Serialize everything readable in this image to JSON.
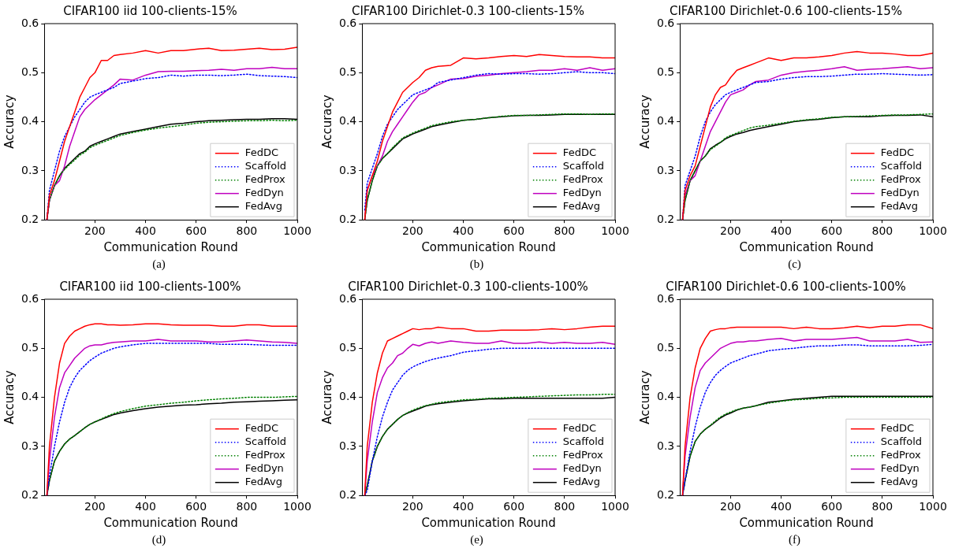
{
  "chart_data": [
    {
      "type": "line",
      "title": "CIFAR100 iid 100-clients-15%",
      "xlabel": "Communication Round",
      "ylabel": "Accuracy",
      "annotations": [
        "(a)"
      ],
      "xlim": [
        0,
        1000
      ],
      "xticks": [
        200,
        400,
        600,
        800,
        1000
      ],
      "ylim": [
        0.2,
        0.6
      ],
      "yticks": [
        0.2,
        0.3,
        0.4,
        0.5,
        0.6
      ],
      "grid": false,
      "legend": "bottom right",
      "marker": "none",
      "x": [
        10,
        20,
        40,
        60,
        80,
        100,
        120,
        140,
        160,
        180,
        200,
        225,
        250,
        275,
        300,
        350,
        400,
        450,
        500,
        550,
        600,
        650,
        700,
        750,
        800,
        850,
        900,
        950,
        1000
      ],
      "series": [
        {
          "name": "FedDC",
          "color": "#ff0000",
          "line_style": "solid",
          "values": [
            0.2,
            0.25,
            0.28,
            0.32,
            0.36,
            0.39,
            0.42,
            0.45,
            0.47,
            0.49,
            0.5,
            0.525,
            0.525,
            0.535,
            0.537,
            0.54,
            0.545,
            0.54,
            0.545,
            0.545,
            0.548,
            0.55,
            0.545,
            0.546,
            0.548,
            0.55,
            0.547,
            0.548,
            0.552
          ]
        },
        {
          "name": "Scaffold",
          "color": "#0000ff",
          "line_style": "dotted",
          "values": [
            0.2,
            0.26,
            0.3,
            0.34,
            0.37,
            0.39,
            0.41,
            0.425,
            0.44,
            0.45,
            0.455,
            0.46,
            0.465,
            0.47,
            0.478,
            0.483,
            0.488,
            0.49,
            0.495,
            0.493,
            0.495,
            0.495,
            0.494,
            0.495,
            0.497,
            0.494,
            0.493,
            0.492,
            0.49
          ]
        },
        {
          "name": "FedProx",
          "color": "#008000",
          "line_style": "dotted",
          "values": [
            0.2,
            0.24,
            0.27,
            0.29,
            0.303,
            0.313,
            0.322,
            0.332,
            0.338,
            0.347,
            0.352,
            0.357,
            0.362,
            0.367,
            0.372,
            0.378,
            0.383,
            0.387,
            0.39,
            0.393,
            0.397,
            0.399,
            0.4,
            0.401,
            0.402,
            0.402,
            0.403,
            0.402,
            0.403
          ]
        },
        {
          "name": "FedDyn",
          "color": "#bf00bf",
          "line_style": "solid",
          "values": [
            0.2,
            0.24,
            0.27,
            0.28,
            0.31,
            0.35,
            0.38,
            0.41,
            0.425,
            0.435,
            0.445,
            0.455,
            0.465,
            0.475,
            0.487,
            0.485,
            0.495,
            0.502,
            0.503,
            0.503,
            0.504,
            0.505,
            0.507,
            0.505,
            0.508,
            0.508,
            0.511,
            0.508,
            0.508
          ]
        },
        {
          "name": "FedAvg",
          "color": "#000000",
          "line_style": "solid",
          "values": [
            0.2,
            0.24,
            0.27,
            0.29,
            0.305,
            0.315,
            0.325,
            0.335,
            0.34,
            0.35,
            0.355,
            0.36,
            0.365,
            0.37,
            0.375,
            0.38,
            0.385,
            0.39,
            0.395,
            0.397,
            0.4,
            0.402,
            0.403,
            0.404,
            0.405,
            0.405,
            0.406,
            0.406,
            0.405
          ]
        }
      ]
    },
    {
      "type": "line",
      "title": "CIFAR100 Dirichlet-0.3 100-clients-15%",
      "xlabel": "Communication Round",
      "ylabel": "Accuracy",
      "annotations": [
        "(b)"
      ],
      "xlim": [
        0,
        1000
      ],
      "xticks": [
        200,
        400,
        600,
        800,
        1000
      ],
      "ylim": [
        0.2,
        0.6
      ],
      "yticks": [
        0.2,
        0.3,
        0.4,
        0.5,
        0.6
      ],
      "grid": false,
      "legend": "bottom right",
      "marker": "none",
      "x": [
        10,
        20,
        40,
        60,
        80,
        100,
        120,
        140,
        160,
        180,
        200,
        225,
        250,
        275,
        300,
        350,
        400,
        450,
        500,
        550,
        600,
        650,
        700,
        750,
        800,
        850,
        900,
        950,
        1000
      ],
      "series": [
        {
          "name": "FedDC",
          "color": "#ff0000",
          "line_style": "solid",
          "values": [
            0.2,
            0.26,
            0.29,
            0.32,
            0.36,
            0.39,
            0.42,
            0.44,
            0.46,
            0.47,
            0.48,
            0.49,
            0.505,
            0.51,
            0.513,
            0.515,
            0.53,
            0.528,
            0.53,
            0.533,
            0.535,
            0.533,
            0.537,
            0.535,
            0.533,
            0.532,
            0.532,
            0.53,
            0.53
          ]
        },
        {
          "name": "Scaffold",
          "color": "#0000ff",
          "line_style": "dotted",
          "values": [
            0.22,
            0.275,
            0.305,
            0.335,
            0.37,
            0.395,
            0.41,
            0.425,
            0.435,
            0.445,
            0.455,
            0.46,
            0.465,
            0.47,
            0.48,
            0.485,
            0.49,
            0.495,
            0.498,
            0.497,
            0.498,
            0.498,
            0.497,
            0.498,
            0.5,
            0.502,
            0.5,
            0.5,
            0.498
          ]
        },
        {
          "name": "FedProx",
          "color": "#008000",
          "line_style": "dotted",
          "values": [
            0.2,
            0.24,
            0.28,
            0.31,
            0.325,
            0.335,
            0.347,
            0.357,
            0.367,
            0.372,
            0.377,
            0.382,
            0.387,
            0.392,
            0.395,
            0.4,
            0.403,
            0.405,
            0.408,
            0.411,
            0.413,
            0.413,
            0.414,
            0.415,
            0.416,
            0.416,
            0.415,
            0.416,
            0.416
          ]
        },
        {
          "name": "FedDyn",
          "color": "#bf00bf",
          "line_style": "solid",
          "values": [
            0.2,
            0.26,
            0.29,
            0.31,
            0.33,
            0.36,
            0.38,
            0.395,
            0.41,
            0.425,
            0.44,
            0.455,
            0.46,
            0.47,
            0.475,
            0.487,
            0.488,
            0.493,
            0.495,
            0.498,
            0.5,
            0.502,
            0.505,
            0.505,
            0.508,
            0.505,
            0.51,
            0.505,
            0.508
          ]
        },
        {
          "name": "FedAvg",
          "color": "#000000",
          "line_style": "solid",
          "values": [
            0.2,
            0.24,
            0.28,
            0.31,
            0.325,
            0.335,
            0.345,
            0.355,
            0.365,
            0.37,
            0.375,
            0.38,
            0.385,
            0.39,
            0.393,
            0.398,
            0.403,
            0.405,
            0.408,
            0.41,
            0.412,
            0.413,
            0.413,
            0.414,
            0.415,
            0.415,
            0.415,
            0.415,
            0.415
          ]
        }
      ]
    },
    {
      "type": "line",
      "title": "CIFAR100 Dirichlet-0.6 100-clients-15%",
      "xlabel": "Communication Round",
      "ylabel": "Accuracy",
      "annotations": [
        "(c)"
      ],
      "xlim": [
        0,
        1000
      ],
      "xticks": [
        200,
        400,
        600,
        800,
        1000
      ],
      "ylim": [
        0.2,
        0.6
      ],
      "yticks": [
        0.2,
        0.3,
        0.4,
        0.5,
        0.6
      ],
      "grid": false,
      "legend": "bottom right",
      "marker": "none",
      "x": [
        10,
        20,
        40,
        60,
        80,
        100,
        120,
        140,
        160,
        180,
        200,
        225,
        250,
        275,
        300,
        350,
        400,
        450,
        500,
        550,
        600,
        650,
        700,
        750,
        800,
        850,
        900,
        950,
        1000
      ],
      "series": [
        {
          "name": "FedDC",
          "color": "#ff0000",
          "line_style": "solid",
          "values": [
            0.2,
            0.26,
            0.29,
            0.31,
            0.35,
            0.39,
            0.43,
            0.455,
            0.47,
            0.475,
            0.49,
            0.505,
            0.51,
            0.515,
            0.52,
            0.53,
            0.525,
            0.53,
            0.53,
            0.532,
            0.535,
            0.54,
            0.543,
            0.54,
            0.54,
            0.538,
            0.535,
            0.535,
            0.54
          ]
        },
        {
          "name": "Scaffold",
          "color": "#0000ff",
          "line_style": "dotted",
          "values": [
            0.2,
            0.27,
            0.3,
            0.33,
            0.37,
            0.4,
            0.42,
            0.435,
            0.445,
            0.455,
            0.46,
            0.465,
            0.47,
            0.475,
            0.48,
            0.482,
            0.487,
            0.49,
            0.492,
            0.492,
            0.493,
            0.495,
            0.497,
            0.497,
            0.498,
            0.497,
            0.496,
            0.495,
            0.496
          ]
        },
        {
          "name": "FedProx",
          "color": "#008000",
          "line_style": "dotted",
          "values": [
            0.2,
            0.24,
            0.28,
            0.3,
            0.32,
            0.33,
            0.343,
            0.35,
            0.358,
            0.367,
            0.372,
            0.377,
            0.382,
            0.387,
            0.39,
            0.393,
            0.397,
            0.401,
            0.404,
            0.406,
            0.409,
            0.41,
            0.411,
            0.412,
            0.413,
            0.414,
            0.414,
            0.415,
            0.416
          ]
        },
        {
          "name": "FedDyn",
          "color": "#bf00bf",
          "line_style": "solid",
          "values": [
            0.2,
            0.25,
            0.28,
            0.29,
            0.32,
            0.35,
            0.38,
            0.4,
            0.42,
            0.44,
            0.455,
            0.46,
            0.465,
            0.475,
            0.482,
            0.485,
            0.495,
            0.5,
            0.503,
            0.505,
            0.508,
            0.512,
            0.505,
            0.507,
            0.508,
            0.51,
            0.512,
            0.508,
            0.51
          ]
        },
        {
          "name": "FedAvg",
          "color": "#000000",
          "line_style": "solid",
          "values": [
            0.2,
            0.24,
            0.28,
            0.3,
            0.32,
            0.33,
            0.345,
            0.352,
            0.358,
            0.365,
            0.37,
            0.375,
            0.378,
            0.382,
            0.385,
            0.39,
            0.395,
            0.4,
            0.403,
            0.405,
            0.408,
            0.41,
            0.41,
            0.41,
            0.412,
            0.413,
            0.413,
            0.414,
            0.41
          ]
        }
      ]
    },
    {
      "type": "line",
      "title": "CIFAR100 iid 100-clients-100%",
      "xlabel": "Communication Round",
      "ylabel": "Accuracy",
      "annotations": [
        "(d)"
      ],
      "xlim": [
        0,
        1000
      ],
      "xticks": [
        200,
        400,
        600,
        800,
        1000
      ],
      "ylim": [
        0.2,
        0.6
      ],
      "yticks": [
        0.2,
        0.3,
        0.4,
        0.5,
        0.6
      ],
      "grid": false,
      "legend": "bottom right",
      "marker": "none",
      "x": [
        10,
        20,
        40,
        60,
        80,
        100,
        120,
        140,
        160,
        180,
        200,
        225,
        250,
        275,
        300,
        350,
        400,
        450,
        500,
        550,
        600,
        650,
        700,
        750,
        800,
        850,
        900,
        950,
        1000
      ],
      "series": [
        {
          "name": "FedDC",
          "color": "#ff0000",
          "line_style": "solid",
          "values": [
            0.2,
            0.3,
            0.4,
            0.47,
            0.51,
            0.525,
            0.535,
            0.54,
            0.545,
            0.548,
            0.55,
            0.55,
            0.548,
            0.548,
            0.547,
            0.548,
            0.55,
            0.55,
            0.548,
            0.547,
            0.547,
            0.547,
            0.545,
            0.545,
            0.548,
            0.548,
            0.545,
            0.545,
            0.545
          ]
        },
        {
          "name": "Scaffold",
          "color": "#0000ff",
          "line_style": "dotted",
          "values": [
            0.2,
            0.24,
            0.3,
            0.35,
            0.39,
            0.42,
            0.44,
            0.455,
            0.465,
            0.475,
            0.482,
            0.49,
            0.495,
            0.5,
            0.503,
            0.507,
            0.51,
            0.51,
            0.51,
            0.51,
            0.51,
            0.51,
            0.508,
            0.508,
            0.508,
            0.507,
            0.506,
            0.506,
            0.506
          ]
        },
        {
          "name": "FedProx",
          "color": "#008000",
          "line_style": "dotted",
          "values": [
            0.2,
            0.23,
            0.27,
            0.29,
            0.305,
            0.315,
            0.322,
            0.33,
            0.338,
            0.345,
            0.35,
            0.356,
            0.362,
            0.367,
            0.371,
            0.377,
            0.382,
            0.385,
            0.388,
            0.39,
            0.393,
            0.395,
            0.397,
            0.398,
            0.4,
            0.4,
            0.4,
            0.401,
            0.402
          ]
        },
        {
          "name": "FedDyn",
          "color": "#bf00bf",
          "line_style": "solid",
          "values": [
            0.2,
            0.27,
            0.36,
            0.42,
            0.45,
            0.465,
            0.48,
            0.49,
            0.5,
            0.505,
            0.507,
            0.507,
            0.51,
            0.512,
            0.513,
            0.515,
            0.515,
            0.518,
            0.515,
            0.515,
            0.515,
            0.513,
            0.513,
            0.515,
            0.517,
            0.515,
            0.513,
            0.512,
            0.51
          ]
        },
        {
          "name": "FedAvg",
          "color": "#000000",
          "line_style": "solid",
          "values": [
            0.2,
            0.23,
            0.27,
            0.29,
            0.305,
            0.315,
            0.322,
            0.33,
            0.338,
            0.345,
            0.35,
            0.355,
            0.36,
            0.365,
            0.368,
            0.373,
            0.377,
            0.38,
            0.382,
            0.384,
            0.385,
            0.387,
            0.388,
            0.39,
            0.391,
            0.392,
            0.393,
            0.394,
            0.395
          ]
        }
      ]
    },
    {
      "type": "line",
      "title": "CIFAR100 Dirichlet-0.3 100-clients-100%",
      "xlabel": "Communication Round",
      "ylabel": "Accuracy",
      "annotations": [
        "(e)"
      ],
      "xlim": [
        0,
        1000
      ],
      "xticks": [
        200,
        400,
        600,
        800,
        1000
      ],
      "ylim": [
        0.2,
        0.6
      ],
      "yticks": [
        0.2,
        0.3,
        0.4,
        0.5,
        0.6
      ],
      "grid": false,
      "legend": "bottom right",
      "marker": "none",
      "x": [
        10,
        20,
        40,
        60,
        80,
        100,
        120,
        140,
        160,
        180,
        200,
        225,
        250,
        275,
        300,
        350,
        400,
        450,
        500,
        550,
        600,
        650,
        700,
        750,
        800,
        850,
        900,
        950,
        1000
      ],
      "series": [
        {
          "name": "FedDC",
          "color": "#ff0000",
          "line_style": "solid",
          "values": [
            0.2,
            0.3,
            0.39,
            0.45,
            0.49,
            0.515,
            0.52,
            0.525,
            0.53,
            0.535,
            0.54,
            0.538,
            0.54,
            0.54,
            0.543,
            0.54,
            0.54,
            0.535,
            0.535,
            0.537,
            0.537,
            0.537,
            0.538,
            0.54,
            0.538,
            0.54,
            0.543,
            0.545,
            0.545
          ]
        },
        {
          "name": "Scaffold",
          "color": "#0000ff",
          "line_style": "dotted",
          "values": [
            0.2,
            0.21,
            0.27,
            0.32,
            0.36,
            0.39,
            0.415,
            0.43,
            0.445,
            0.455,
            0.462,
            0.468,
            0.473,
            0.477,
            0.48,
            0.485,
            0.492,
            0.495,
            0.498,
            0.5,
            0.5,
            0.5,
            0.5,
            0.5,
            0.5,
            0.5,
            0.5,
            0.5,
            0.5
          ]
        },
        {
          "name": "FedProx",
          "color": "#008000",
          "line_style": "dotted",
          "values": [
            0.2,
            0.22,
            0.27,
            0.3,
            0.32,
            0.335,
            0.345,
            0.355,
            0.363,
            0.369,
            0.374,
            0.379,
            0.383,
            0.386,
            0.389,
            0.392,
            0.395,
            0.396,
            0.398,
            0.399,
            0.4,
            0.401,
            0.402,
            0.403,
            0.404,
            0.405,
            0.405,
            0.406,
            0.406
          ]
        },
        {
          "name": "FedDyn",
          "color": "#bf00bf",
          "line_style": "solid",
          "values": [
            0.2,
            0.27,
            0.35,
            0.41,
            0.44,
            0.46,
            0.47,
            0.485,
            0.49,
            0.5,
            0.508,
            0.505,
            0.51,
            0.513,
            0.51,
            0.515,
            0.512,
            0.51,
            0.51,
            0.515,
            0.51,
            0.51,
            0.513,
            0.51,
            0.512,
            0.51,
            0.51,
            0.512,
            0.508
          ]
        },
        {
          "name": "FedAvg",
          "color": "#000000",
          "line_style": "solid",
          "values": [
            0.2,
            0.22,
            0.27,
            0.3,
            0.32,
            0.335,
            0.345,
            0.355,
            0.363,
            0.368,
            0.372,
            0.377,
            0.382,
            0.385,
            0.387,
            0.39,
            0.393,
            0.395,
            0.397,
            0.397,
            0.398,
            0.398,
            0.398,
            0.398,
            0.398,
            0.398,
            0.398,
            0.398,
            0.4
          ]
        }
      ]
    },
    {
      "type": "line",
      "title": "CIFAR100 Dirichlet-0.6 100-clients-100%",
      "xlabel": "Communication Round",
      "ylabel": "Accuracy",
      "annotations": [
        "(f)"
      ],
      "xlim": [
        0,
        1000
      ],
      "xticks": [
        200,
        400,
        600,
        800,
        1000
      ],
      "ylim": [
        0.2,
        0.6
      ],
      "yticks": [
        0.2,
        0.3,
        0.4,
        0.5,
        0.6
      ],
      "grid": false,
      "legend": "bottom right",
      "marker": "none",
      "x": [
        10,
        20,
        40,
        60,
        80,
        100,
        120,
        140,
        160,
        180,
        200,
        225,
        250,
        275,
        300,
        350,
        400,
        450,
        500,
        550,
        600,
        650,
        700,
        750,
        800,
        850,
        900,
        950,
        1000
      ],
      "series": [
        {
          "name": "FedDC",
          "color": "#ff0000",
          "line_style": "solid",
          "values": [
            0.2,
            0.3,
            0.4,
            0.46,
            0.5,
            0.52,
            0.535,
            0.538,
            0.54,
            0.54,
            0.542,
            0.543,
            0.543,
            0.543,
            0.543,
            0.543,
            0.543,
            0.54,
            0.543,
            0.54,
            0.54,
            0.542,
            0.545,
            0.542,
            0.545,
            0.545,
            0.548,
            0.548,
            0.54
          ]
        },
        {
          "name": "Scaffold",
          "color": "#0000ff",
          "line_style": "dotted",
          "values": [
            0.2,
            0.23,
            0.29,
            0.34,
            0.38,
            0.41,
            0.43,
            0.445,
            0.455,
            0.463,
            0.47,
            0.475,
            0.48,
            0.485,
            0.488,
            0.495,
            0.498,
            0.5,
            0.503,
            0.505,
            0.505,
            0.507,
            0.507,
            0.505,
            0.505,
            0.505,
            0.505,
            0.506,
            0.508
          ]
        },
        {
          "name": "FedProx",
          "color": "#008000",
          "line_style": "dotted",
          "values": [
            0.2,
            0.23,
            0.28,
            0.31,
            0.325,
            0.335,
            0.343,
            0.352,
            0.36,
            0.366,
            0.37,
            0.375,
            0.378,
            0.38,
            0.383,
            0.388,
            0.392,
            0.395,
            0.396,
            0.398,
            0.399,
            0.4,
            0.4,
            0.4,
            0.4,
            0.4,
            0.4,
            0.4,
            0.4
          ]
        },
        {
          "name": "FedDyn",
          "color": "#bf00bf",
          "line_style": "solid",
          "values": [
            0.2,
            0.28,
            0.36,
            0.42,
            0.455,
            0.47,
            0.48,
            0.49,
            0.5,
            0.505,
            0.51,
            0.513,
            0.513,
            0.515,
            0.515,
            0.518,
            0.52,
            0.515,
            0.518,
            0.518,
            0.518,
            0.52,
            0.522,
            0.515,
            0.515,
            0.515,
            0.518,
            0.512,
            0.513
          ]
        },
        {
          "name": "FedAvg",
          "color": "#000000",
          "line_style": "solid",
          "values": [
            0.2,
            0.23,
            0.28,
            0.31,
            0.325,
            0.335,
            0.342,
            0.35,
            0.358,
            0.364,
            0.368,
            0.374,
            0.378,
            0.38,
            0.383,
            0.39,
            0.393,
            0.396,
            0.398,
            0.4,
            0.402,
            0.402,
            0.402,
            0.402,
            0.402,
            0.402,
            0.402,
            0.402,
            0.402
          ]
        }
      ]
    }
  ]
}
